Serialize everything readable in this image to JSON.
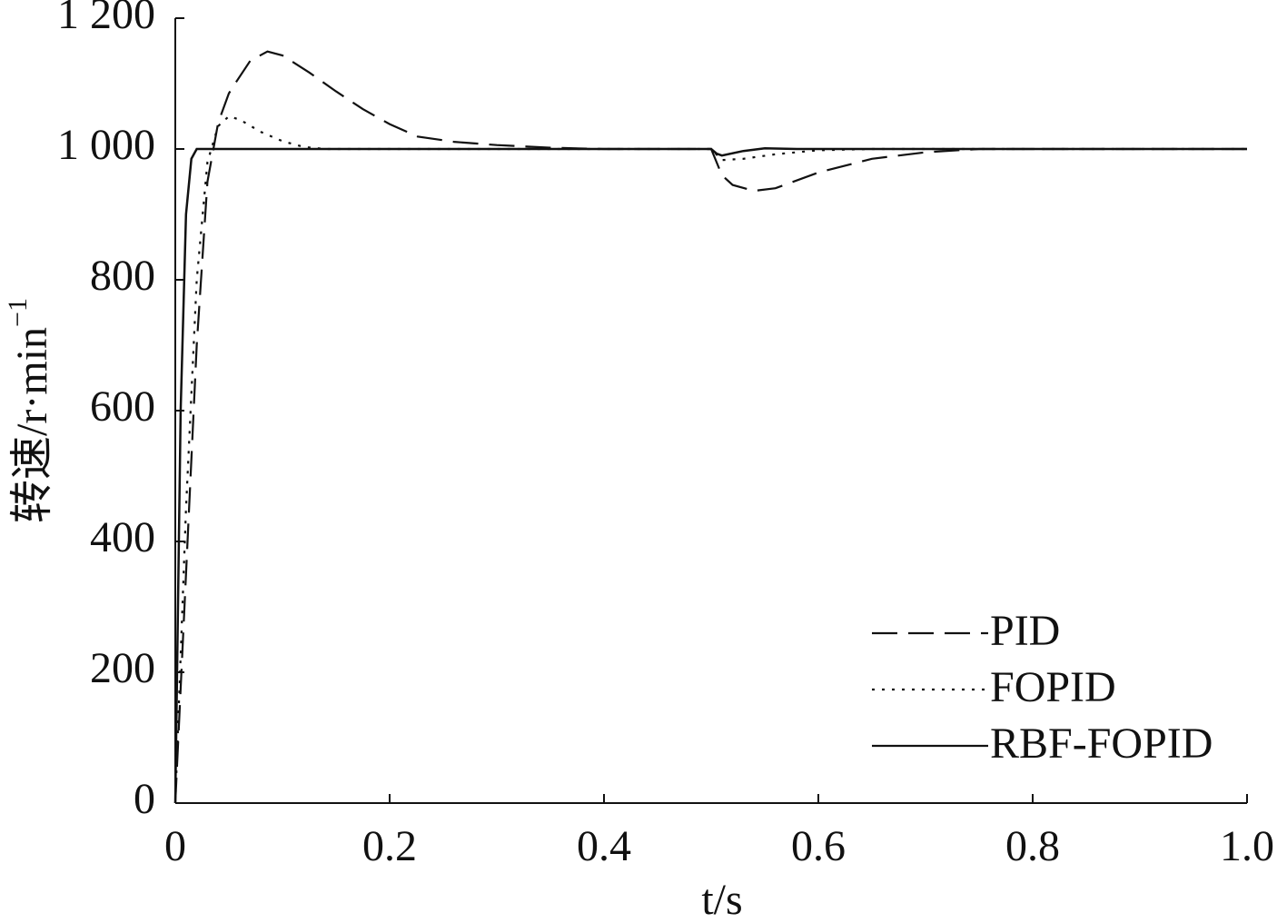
{
  "chart_data": {
    "type": "line",
    "xlabel": "t/s",
    "ylabel": "转速/r·min",
    "ylabel_sup": "−1",
    "xlim": [
      0,
      1
    ],
    "ylim": [
      0,
      1200
    ],
    "xticks": [
      0,
      0.2,
      0.4,
      0.6,
      0.8,
      {
        "value": 1,
        "label": "1.0"
      }
    ],
    "yticks": [
      0,
      200,
      400,
      600,
      800,
      {
        "value": 1000,
        "label": "1 000"
      },
      {
        "value": 1200,
        "label": "1 200"
      }
    ],
    "legend": "bottom-right",
    "series": [
      {
        "name": "PID",
        "color": "#111111",
        "style": "dashed",
        "x": [
          0,
          0.01,
          0.02,
          0.03,
          0.04,
          0.05,
          0.057,
          0.07,
          0.086,
          0.1,
          0.125,
          0.15,
          0.175,
          0.2,
          0.226,
          0.26,
          0.3,
          0.35,
          0.4,
          0.5,
          0.51,
          0.52,
          0.54,
          0.56,
          0.6,
          0.65,
          0.7,
          0.75,
          0.8,
          0.9,
          1.0
        ],
        "values": [
          0,
          350,
          700,
          950,
          1040,
          1085,
          1103,
          1135,
          1149,
          1143,
          1117,
          1088,
          1061,
          1038,
          1019,
          1011,
          1006,
          1002,
          1000,
          1000,
          960,
          945,
          936,
          940,
          964,
          985,
          995,
          1000,
          1000,
          1000,
          1000
        ]
      },
      {
        "name": "FOPID",
        "color": "#111111",
        "style": "dotted",
        "x": [
          0,
          0.01,
          0.02,
          0.03,
          0.04,
          0.05,
          0.06,
          0.08,
          0.1,
          0.12,
          0.14,
          0.2,
          0.3,
          0.4,
          0.5,
          0.51,
          0.53,
          0.56,
          0.6,
          0.65,
          0.7,
          0.8,
          0.9,
          1.0
        ],
        "values": [
          0,
          450,
          800,
          980,
          1035,
          1050,
          1045,
          1026,
          1012,
          1003,
          1000,
          1000,
          1000,
          1000,
          1000,
          983,
          985,
          992,
          998,
          1000,
          1000,
          1000,
          1000,
          1000
        ]
      },
      {
        "name": "RBF-FOPID",
        "color": "#111111",
        "style": "solid",
        "x": [
          0,
          0.005,
          0.01,
          0.015,
          0.02,
          0.1,
          0.2,
          0.3,
          0.4,
          0.5,
          0.505,
          0.51,
          0.53,
          0.55,
          0.58,
          0.7,
          0.8,
          0.9,
          1.0
        ],
        "values": [
          0,
          600,
          900,
          985,
          1000,
          1000,
          1000,
          1000,
          1000,
          1000,
          993,
          990,
          997,
          1001,
          1000,
          1000,
          1000,
          1000,
          1000
        ]
      }
    ]
  }
}
